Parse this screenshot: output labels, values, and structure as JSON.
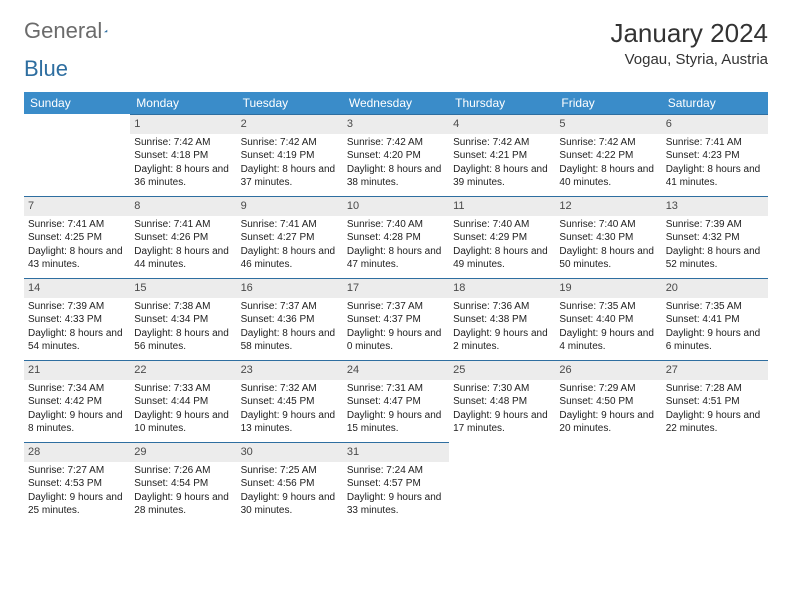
{
  "brand": {
    "part1": "General",
    "part2": "Blue",
    "part1_color": "#6b6b6b",
    "part2_color": "#2e6ea0",
    "triangle_color": "#2e6ea0"
  },
  "title": "January 2024",
  "location": "Vogau, Styria, Austria",
  "colors": {
    "header_bg": "#3a8cc9",
    "header_text": "#ffffff",
    "daynum_bg": "#ececec",
    "daynum_text": "#4a4a4a",
    "rule": "#2e6ea0",
    "body_text": "#212121",
    "background": "#ffffff"
  },
  "typography": {
    "title_fontsize": 26,
    "location_fontsize": 15,
    "header_fontsize": 12,
    "daynum_fontsize": 11,
    "cell_fontsize": 10
  },
  "weekdays": [
    "Sunday",
    "Monday",
    "Tuesday",
    "Wednesday",
    "Thursday",
    "Friday",
    "Saturday"
  ],
  "weeks": [
    [
      null,
      {
        "d": "1",
        "sr": "7:42 AM",
        "ss": "4:18 PM",
        "dl": "8 hours and 36 minutes."
      },
      {
        "d": "2",
        "sr": "7:42 AM",
        "ss": "4:19 PM",
        "dl": "8 hours and 37 minutes."
      },
      {
        "d": "3",
        "sr": "7:42 AM",
        "ss": "4:20 PM",
        "dl": "8 hours and 38 minutes."
      },
      {
        "d": "4",
        "sr": "7:42 AM",
        "ss": "4:21 PM",
        "dl": "8 hours and 39 minutes."
      },
      {
        "d": "5",
        "sr": "7:42 AM",
        "ss": "4:22 PM",
        "dl": "8 hours and 40 minutes."
      },
      {
        "d": "6",
        "sr": "7:41 AM",
        "ss": "4:23 PM",
        "dl": "8 hours and 41 minutes."
      }
    ],
    [
      {
        "d": "7",
        "sr": "7:41 AM",
        "ss": "4:25 PM",
        "dl": "8 hours and 43 minutes."
      },
      {
        "d": "8",
        "sr": "7:41 AM",
        "ss": "4:26 PM",
        "dl": "8 hours and 44 minutes."
      },
      {
        "d": "9",
        "sr": "7:41 AM",
        "ss": "4:27 PM",
        "dl": "8 hours and 46 minutes."
      },
      {
        "d": "10",
        "sr": "7:40 AM",
        "ss": "4:28 PM",
        "dl": "8 hours and 47 minutes."
      },
      {
        "d": "11",
        "sr": "7:40 AM",
        "ss": "4:29 PM",
        "dl": "8 hours and 49 minutes."
      },
      {
        "d": "12",
        "sr": "7:40 AM",
        "ss": "4:30 PM",
        "dl": "8 hours and 50 minutes."
      },
      {
        "d": "13",
        "sr": "7:39 AM",
        "ss": "4:32 PM",
        "dl": "8 hours and 52 minutes."
      }
    ],
    [
      {
        "d": "14",
        "sr": "7:39 AM",
        "ss": "4:33 PM",
        "dl": "8 hours and 54 minutes."
      },
      {
        "d": "15",
        "sr": "7:38 AM",
        "ss": "4:34 PM",
        "dl": "8 hours and 56 minutes."
      },
      {
        "d": "16",
        "sr": "7:37 AM",
        "ss": "4:36 PM",
        "dl": "8 hours and 58 minutes."
      },
      {
        "d": "17",
        "sr": "7:37 AM",
        "ss": "4:37 PM",
        "dl": "9 hours and 0 minutes."
      },
      {
        "d": "18",
        "sr": "7:36 AM",
        "ss": "4:38 PM",
        "dl": "9 hours and 2 minutes."
      },
      {
        "d": "19",
        "sr": "7:35 AM",
        "ss": "4:40 PM",
        "dl": "9 hours and 4 minutes."
      },
      {
        "d": "20",
        "sr": "7:35 AM",
        "ss": "4:41 PM",
        "dl": "9 hours and 6 minutes."
      }
    ],
    [
      {
        "d": "21",
        "sr": "7:34 AM",
        "ss": "4:42 PM",
        "dl": "9 hours and 8 minutes."
      },
      {
        "d": "22",
        "sr": "7:33 AM",
        "ss": "4:44 PM",
        "dl": "9 hours and 10 minutes."
      },
      {
        "d": "23",
        "sr": "7:32 AM",
        "ss": "4:45 PM",
        "dl": "9 hours and 13 minutes."
      },
      {
        "d": "24",
        "sr": "7:31 AM",
        "ss": "4:47 PM",
        "dl": "9 hours and 15 minutes."
      },
      {
        "d": "25",
        "sr": "7:30 AM",
        "ss": "4:48 PM",
        "dl": "9 hours and 17 minutes."
      },
      {
        "d": "26",
        "sr": "7:29 AM",
        "ss": "4:50 PM",
        "dl": "9 hours and 20 minutes."
      },
      {
        "d": "27",
        "sr": "7:28 AM",
        "ss": "4:51 PM",
        "dl": "9 hours and 22 minutes."
      }
    ],
    [
      {
        "d": "28",
        "sr": "7:27 AM",
        "ss": "4:53 PM",
        "dl": "9 hours and 25 minutes."
      },
      {
        "d": "29",
        "sr": "7:26 AM",
        "ss": "4:54 PM",
        "dl": "9 hours and 28 minutes."
      },
      {
        "d": "30",
        "sr": "7:25 AM",
        "ss": "4:56 PM",
        "dl": "9 hours and 30 minutes."
      },
      {
        "d": "31",
        "sr": "7:24 AM",
        "ss": "4:57 PM",
        "dl": "9 hours and 33 minutes."
      },
      null,
      null,
      null
    ]
  ],
  "labels": {
    "sunrise": "Sunrise:",
    "sunset": "Sunset:",
    "daylight": "Daylight:"
  }
}
